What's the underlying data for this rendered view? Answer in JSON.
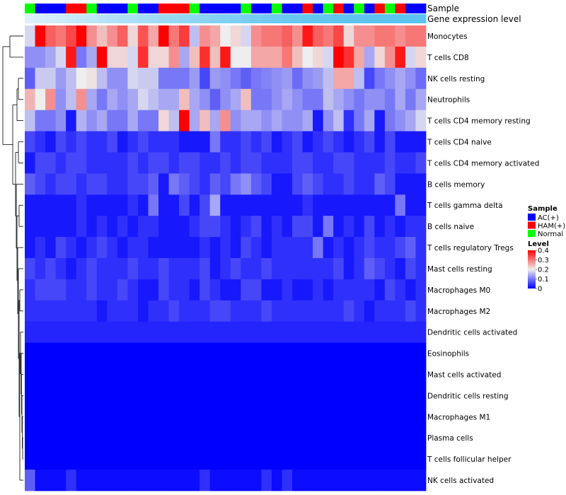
{
  "chart_data": {
    "type": "heatmap",
    "annotation_labels": [
      "Sample",
      "Gene expression level"
    ],
    "rows": [
      "Monocytes",
      "T cells CD8",
      "NK cells resting",
      "Neutrophils",
      "T cells CD4 memory resting",
      "T cells CD4 naive",
      "T cells CD4 memory activated",
      "B cells memory",
      "T cells gamma delta",
      "B cells naive",
      "T cells regulatory  Tregs",
      "Mast cells resting",
      "Macrophages M0",
      "Macrophages M2",
      "Dendritic cells activated",
      "Eosinophils",
      "Mast cells activated",
      "Dendritic cells resting",
      "Macrophages M1",
      "Plasma cells",
      "T cells follicular helper",
      "NK cells activated"
    ],
    "samples": [
      "Normal",
      "AC(+)",
      "AC(+)",
      "AC(+)",
      "HAM(+)",
      "HAM(+)",
      "Normal",
      "AC(+)",
      "AC(+)",
      "AC(+)",
      "Normal",
      "AC(+)",
      "AC(+)",
      "HAM(+)",
      "HAM(+)",
      "HAM(+)",
      "Normal",
      "AC(+)",
      "AC(+)",
      "AC(+)",
      "AC(+)",
      "Normal",
      "AC(+)",
      "AC(+)",
      "Normal",
      "AC(+)",
      "AC(+)",
      "HAM(+)",
      "AC(+)",
      "Normal",
      "HAM(+)",
      "AC(+)",
      "Normal",
      "AC(+)",
      "HAM(+)",
      "Normal",
      "HAM(+)",
      "AC(+)",
      "AC(+)"
    ],
    "sample_colors": {
      "AC(+)": "#0000FF",
      "HAM(+)": "#FF0000",
      "Normal": "#00FF00"
    },
    "gene_expression_level": [
      0.02,
      0.06,
      0.1,
      0.14,
      0.18,
      0.22,
      0.25,
      0.29,
      0.33,
      0.37,
      0.4,
      0.44,
      0.47,
      0.51,
      0.55,
      0.58,
      0.62,
      0.65,
      0.69,
      0.72,
      0.75,
      0.78,
      0.81,
      0.84,
      0.87,
      0.9,
      0.92,
      0.94,
      0.95,
      0.96,
      0.97,
      0.98,
      0.98,
      0.99,
      0.99,
      1.0,
      1.0,
      1.0,
      1.0
    ],
    "gene_expression_colors": [
      "#dff1fa",
      "#5bc3ef"
    ],
    "values": [
      [
        0.18,
        0.4,
        0.32,
        0.3,
        0.34,
        0.42,
        0.28,
        0.24,
        0.28,
        0.32,
        0.22,
        0.33,
        0.26,
        0.4,
        0.3,
        0.35,
        0.16,
        0.28,
        0.26,
        0.2,
        0.22,
        0.18,
        0.28,
        0.3,
        0.3,
        0.32,
        0.28,
        0.38,
        0.32,
        0.3,
        0.34,
        0.22,
        0.28,
        0.28,
        0.3,
        0.3,
        0.28,
        0.3,
        0.3
      ],
      [
        0.12,
        0.12,
        0.14,
        0.18,
        0.38,
        0.1,
        0.14,
        0.4,
        0.22,
        0.22,
        0.18,
        0.36,
        0.22,
        0.22,
        0.28,
        0.14,
        0.24,
        0.36,
        0.24,
        0.38,
        0.2,
        0.2,
        0.26,
        0.26,
        0.26,
        0.3,
        0.24,
        0.2,
        0.22,
        0.18,
        0.4,
        0.36,
        0.26,
        0.14,
        0.22,
        0.28,
        0.38,
        0.18,
        0.22
      ],
      [
        0.08,
        0.17,
        0.17,
        0.13,
        0.16,
        0.2,
        0.21,
        0.16,
        0.12,
        0.12,
        0.18,
        0.17,
        0.17,
        0.1,
        0.1,
        0.1,
        0.13,
        0.06,
        0.13,
        0.12,
        0.1,
        0.08,
        0.1,
        0.11,
        0.12,
        0.13,
        0.09,
        0.12,
        0.13,
        0.16,
        0.26,
        0.26,
        0.16,
        0.06,
        0.1,
        0.12,
        0.14,
        0.12,
        0.09
      ],
      [
        0.25,
        0.2,
        0.28,
        0.12,
        0.16,
        0.28,
        0.14,
        0.1,
        0.14,
        0.12,
        0.14,
        0.18,
        0.16,
        0.14,
        0.14,
        0.24,
        0.14,
        0.12,
        0.08,
        0.12,
        0.14,
        0.24,
        0.1,
        0.1,
        0.12,
        0.14,
        0.12,
        0.1,
        0.1,
        0.16,
        0.14,
        0.12,
        0.1,
        0.12,
        0.12,
        0.1,
        0.14,
        0.1,
        0.14
      ],
      [
        0.16,
        0.1,
        0.1,
        0.12,
        0.02,
        0.15,
        0.12,
        0.14,
        0.1,
        0.1,
        0.14,
        0.1,
        0.1,
        0.22,
        0.16,
        0.4,
        0.14,
        0.24,
        0.14,
        0.28,
        0.12,
        0.14,
        0.14,
        0.12,
        0.14,
        0.12,
        0.12,
        0.14,
        0.02,
        0.12,
        0.16,
        0.04,
        0.1,
        0.14,
        0.02,
        0.1,
        0.12,
        0.14,
        0.18
      ],
      [
        0.06,
        0.04,
        0.02,
        0.06,
        0.04,
        0.06,
        0.04,
        0.04,
        0.06,
        0.02,
        0.04,
        0.06,
        0.04,
        0.04,
        0.04,
        0.02,
        0.02,
        0.02,
        0.1,
        0.04,
        0.04,
        0.06,
        0.04,
        0.06,
        0.02,
        0.04,
        0.06,
        0.02,
        0.04,
        0.06,
        0.04,
        0.02,
        0.04,
        0.06,
        0.02,
        0.06,
        0.02,
        0.02,
        0.02
      ],
      [
        0.02,
        0.06,
        0.06,
        0.04,
        0.06,
        0.06,
        0.04,
        0.04,
        0.04,
        0.04,
        0.06,
        0.04,
        0.06,
        0.06,
        0.04,
        0.06,
        0.06,
        0.04,
        0.04,
        0.06,
        0.04,
        0.06,
        0.06,
        0.04,
        0.04,
        0.04,
        0.06,
        0.06,
        0.04,
        0.04,
        0.06,
        0.06,
        0.04,
        0.04,
        0.04,
        0.06,
        0.04,
        0.04,
        0.06
      ],
      [
        0.08,
        0.06,
        0.04,
        0.06,
        0.06,
        0.04,
        0.06,
        0.06,
        0.04,
        0.04,
        0.06,
        0.06,
        0.08,
        0.02,
        0.1,
        0.08,
        0.06,
        0.04,
        0.08,
        0.06,
        0.1,
        0.12,
        0.08,
        0.06,
        0.02,
        0.02,
        0.06,
        0.08,
        0.06,
        0.04,
        0.04,
        0.06,
        0.04,
        0.04,
        0.08,
        0.06,
        0.02,
        0.02,
        0.02
      ],
      [
        0.02,
        0.02,
        0.02,
        0.02,
        0.02,
        0.04,
        0.02,
        0.02,
        0.02,
        0.02,
        0.04,
        0.02,
        0.1,
        0.02,
        0.02,
        0.06,
        0.02,
        0.06,
        0.14,
        0.02,
        0.02,
        0.02,
        0.02,
        0.02,
        0.02,
        0.02,
        0.02,
        0.04,
        0.02,
        0.02,
        0.02,
        0.02,
        0.02,
        0.02,
        0.02,
        0.02,
        0.1,
        0.02,
        0.02
      ],
      [
        0.02,
        0.02,
        0.02,
        0.02,
        0.02,
        0.04,
        0.02,
        0.04,
        0.02,
        0.04,
        0.02,
        0.04,
        0.04,
        0.02,
        0.02,
        0.02,
        0.04,
        0.06,
        0.06,
        0.04,
        0.02,
        0.04,
        0.06,
        0.02,
        0.04,
        0.02,
        0.06,
        0.06,
        0.02,
        0.1,
        0.02,
        0.04,
        0.02,
        0.06,
        0.02,
        0.04,
        0.02,
        0.04,
        0.04
      ],
      [
        0.02,
        0.04,
        0.02,
        0.06,
        0.04,
        0.02,
        0.04,
        0.06,
        0.04,
        0.02,
        0.04,
        0.04,
        0.02,
        0.02,
        0.02,
        0.02,
        0.02,
        0.04,
        0.02,
        0.04,
        0.02,
        0.06,
        0.04,
        0.02,
        0.04,
        0.04,
        0.04,
        0.04,
        0.1,
        0.02,
        0.04,
        0.02,
        0.04,
        0.06,
        0.04,
        0.04,
        0.06,
        0.08,
        0.04
      ],
      [
        0.06,
        0.04,
        0.06,
        0.04,
        0.02,
        0.04,
        0.06,
        0.04,
        0.04,
        0.04,
        0.06,
        0.04,
        0.04,
        0.06,
        0.04,
        0.04,
        0.04,
        0.06,
        0.02,
        0.04,
        0.06,
        0.04,
        0.04,
        0.06,
        0.04,
        0.04,
        0.04,
        0.04,
        0.04,
        0.04,
        0.06,
        0.02,
        0.04,
        0.08,
        0.06,
        0.04,
        0.02,
        0.06,
        0.04
      ],
      [
        0.04,
        0.06,
        0.06,
        0.06,
        0.04,
        0.04,
        0.06,
        0.04,
        0.04,
        0.06,
        0.04,
        0.02,
        0.02,
        0.06,
        0.04,
        0.04,
        0.02,
        0.06,
        0.04,
        0.02,
        0.02,
        0.06,
        0.06,
        0.02,
        0.02,
        0.04,
        0.02,
        0.02,
        0.04,
        0.02,
        0.04,
        0.04,
        0.04,
        0.04,
        0.02,
        0.06,
        0.04,
        0.02,
        0.04
      ],
      [
        0.04,
        0.04,
        0.04,
        0.04,
        0.04,
        0.04,
        0.04,
        0.02,
        0.04,
        0.04,
        0.04,
        0.02,
        0.04,
        0.04,
        0.06,
        0.04,
        0.04,
        0.04,
        0.06,
        0.06,
        0.04,
        0.04,
        0.04,
        0.06,
        0.04,
        0.04,
        0.04,
        0.04,
        0.04,
        0.04,
        0.04,
        0.06,
        0.04,
        0.02,
        0.04,
        0.04,
        0.04,
        0.06,
        0.04
      ],
      [
        0.03,
        0.03,
        0.03,
        0.03,
        0.03,
        0.03,
        0.03,
        0.03,
        0.03,
        0.03,
        0.03,
        0.03,
        0.03,
        0.03,
        0.03,
        0.03,
        0.03,
        0.03,
        0.03,
        0.03,
        0.03,
        0.03,
        0.03,
        0.03,
        0.03,
        0.03,
        0.03,
        0.03,
        0.03,
        0.03,
        0.03,
        0.03,
        0.03,
        0.03,
        0.03,
        0.03,
        0.03,
        0.03,
        0.03
      ],
      [
        0,
        0,
        0,
        0,
        0,
        0,
        0,
        0,
        0,
        0,
        0,
        0,
        0,
        0,
        0,
        0,
        0,
        0,
        0,
        0,
        0,
        0,
        0,
        0,
        0,
        0,
        0,
        0,
        0,
        0,
        0,
        0,
        0,
        0,
        0,
        0,
        0,
        0,
        0
      ],
      [
        0,
        0,
        0,
        0,
        0,
        0,
        0,
        0,
        0,
        0,
        0,
        0,
        0,
        0,
        0,
        0,
        0,
        0,
        0,
        0,
        0,
        0,
        0,
        0,
        0,
        0,
        0,
        0,
        0,
        0,
        0,
        0,
        0,
        0,
        0,
        0,
        0,
        0,
        0
      ],
      [
        0,
        0,
        0,
        0,
        0,
        0,
        0,
        0,
        0,
        0,
        0,
        0,
        0,
        0,
        0,
        0,
        0,
        0,
        0,
        0,
        0,
        0,
        0,
        0,
        0,
        0,
        0,
        0,
        0,
        0,
        0,
        0,
        0,
        0,
        0,
        0,
        0,
        0,
        0
      ],
      [
        0,
        0,
        0,
        0,
        0,
        0,
        0,
        0,
        0,
        0,
        0,
        0,
        0,
        0,
        0,
        0,
        0,
        0,
        0,
        0,
        0,
        0,
        0,
        0,
        0,
        0,
        0,
        0,
        0,
        0,
        0,
        0,
        0,
        0,
        0,
        0,
        0,
        0,
        0
      ],
      [
        0,
        0,
        0,
        0,
        0,
        0,
        0,
        0,
        0,
        0,
        0,
        0,
        0,
        0,
        0,
        0,
        0,
        0,
        0,
        0,
        0,
        0,
        0,
        0,
        0,
        0,
        0,
        0,
        0,
        0,
        0,
        0,
        0,
        0,
        0,
        0,
        0,
        0,
        0
      ],
      [
        0,
        0,
        0,
        0,
        0,
        0,
        0,
        0,
        0,
        0,
        0,
        0,
        0,
        0,
        0,
        0,
        0,
        0,
        0,
        0,
        0,
        0,
        0,
        0,
        0,
        0,
        0,
        0,
        0,
        0,
        0,
        0,
        0,
        0,
        0,
        0,
        0,
        0,
        0
      ],
      [
        0.08,
        0.01,
        0.01,
        0.01,
        0.04,
        0.01,
        0.01,
        0.01,
        0.01,
        0.01,
        0.01,
        0.01,
        0.01,
        0.01,
        0.01,
        0.01,
        0.01,
        0.04,
        0.01,
        0.01,
        0.01,
        0.01,
        0.01,
        0.04,
        0.01,
        0.04,
        0.01,
        0.01,
        0.01,
        0.01,
        0.01,
        0.01,
        0.01,
        0.01,
        0.01,
        0.01,
        0.01,
        0.01,
        0.01
      ]
    ],
    "color_scale": {
      "breaks": [
        0,
        0.2,
        0.4
      ],
      "colors": [
        "#0000FF",
        "#EEEEEE",
        "#FF0000"
      ]
    },
    "legend": {
      "sample_title": "Sample",
      "sample_entries": [
        "AC(+)",
        "HAM(+)",
        "Normal"
      ],
      "level_title": "Level",
      "level_ticks": [
        "0.4",
        "0.3",
        "0.2",
        "0.1",
        "0"
      ],
      "level_tick_values": [
        0.4,
        0.3,
        0.2,
        0.1,
        0
      ],
      "placement": "right"
    },
    "row_dendrogram": true,
    "column_dendrogram": false
  }
}
